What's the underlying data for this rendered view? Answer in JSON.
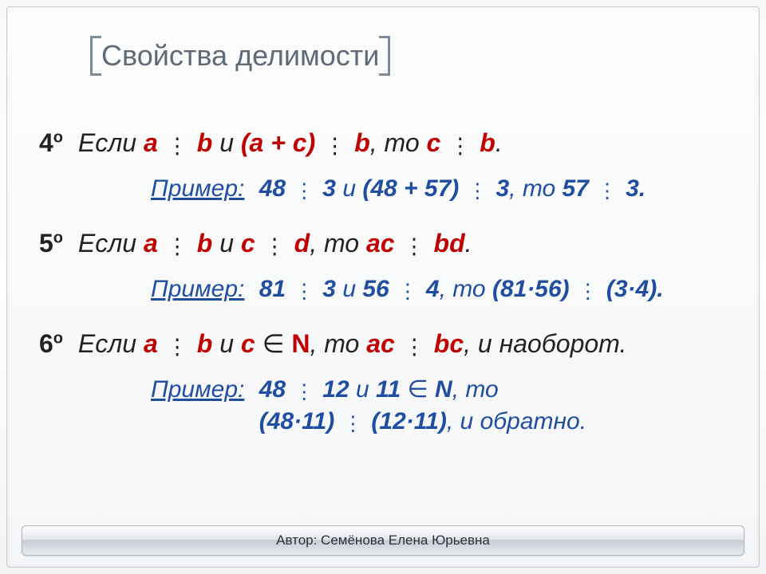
{
  "title": "Свойства делимости",
  "footer": "Автор:  Семёнова Елена Юрьевна",
  "example_label": "Пример:",
  "rules": [
    {
      "ord": "4",
      "ord_sup": "о",
      "stmt_pre": "Если ",
      "a": "a",
      "b": "b",
      "c": "c",
      "sum": "(a + c)",
      "stmt_conj": " и ",
      "stmt_then": ", то ",
      "stmt_end": ".",
      "ex_n1": "48",
      "ex_d1": "3",
      "ex_sum": "(48 + 57)",
      "ex_d2": "3",
      "ex_res_n": "57",
      "ex_res_d": "3"
    },
    {
      "ord": "5",
      "ord_sup": "о",
      "a": "a",
      "b": "b",
      "c": "c",
      "d": "d",
      "ac": "ac",
      "bd": "bd",
      "ex_n1": "81",
      "ex_d1": "3",
      "ex_n2": "56",
      "ex_d2": "4",
      "ex_prod_n": "(81·56)",
      "ex_prod_d": "(3·4)"
    },
    {
      "ord": "6",
      "ord_sup": "о",
      "a": "a",
      "b": "b",
      "c": "c",
      "N": "N",
      "ac": "ac",
      "bc": "bc",
      "tail": ", и наоборот.",
      "ex_n1": "48",
      "ex_d1": "12",
      "ex_c": "11",
      "ex_N": "N",
      "ex_prod_n": "(48·11)",
      "ex_prod_d": "(12·11)",
      "ex_tail": ", и обратно."
    }
  ]
}
